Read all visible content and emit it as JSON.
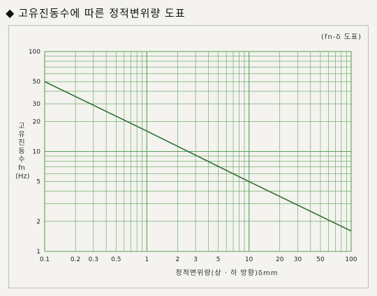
{
  "header": {
    "diamond": "◆",
    "title": "고유진동수에 따른 정적변위량 도표"
  },
  "legend_note": "(fn-δ 도표)",
  "colors": {
    "grid": "#5aa15a",
    "line": "#2e6e2e",
    "background": "#f4f3ef"
  },
  "chart_data": {
    "type": "line",
    "title": "고유진동수에 따른 정적변위량 도표",
    "xlabel": "정적변위량(상 · 하 방향)δmm",
    "ylabel": [
      "고",
      "유",
      "진",
      "동",
      "수",
      "fn",
      "(Hz)"
    ],
    "xscale": "log",
    "yscale": "log",
    "xlim": [
      0.1,
      100
    ],
    "ylim": [
      1,
      100
    ],
    "grid": true,
    "x_ticks": [
      "0.1",
      "0.2",
      "0.3",
      "0.5",
      "1",
      "2",
      "3",
      "5",
      "10",
      "20",
      "30",
      "50",
      "100"
    ],
    "y_ticks": [
      "1",
      "2",
      "5",
      "10",
      "20",
      "30",
      "50",
      "100"
    ],
    "series": [
      {
        "x": [
          0.1,
          1,
          10,
          100
        ],
        "y": [
          50,
          16,
          5,
          1.6
        ]
      }
    ]
  }
}
